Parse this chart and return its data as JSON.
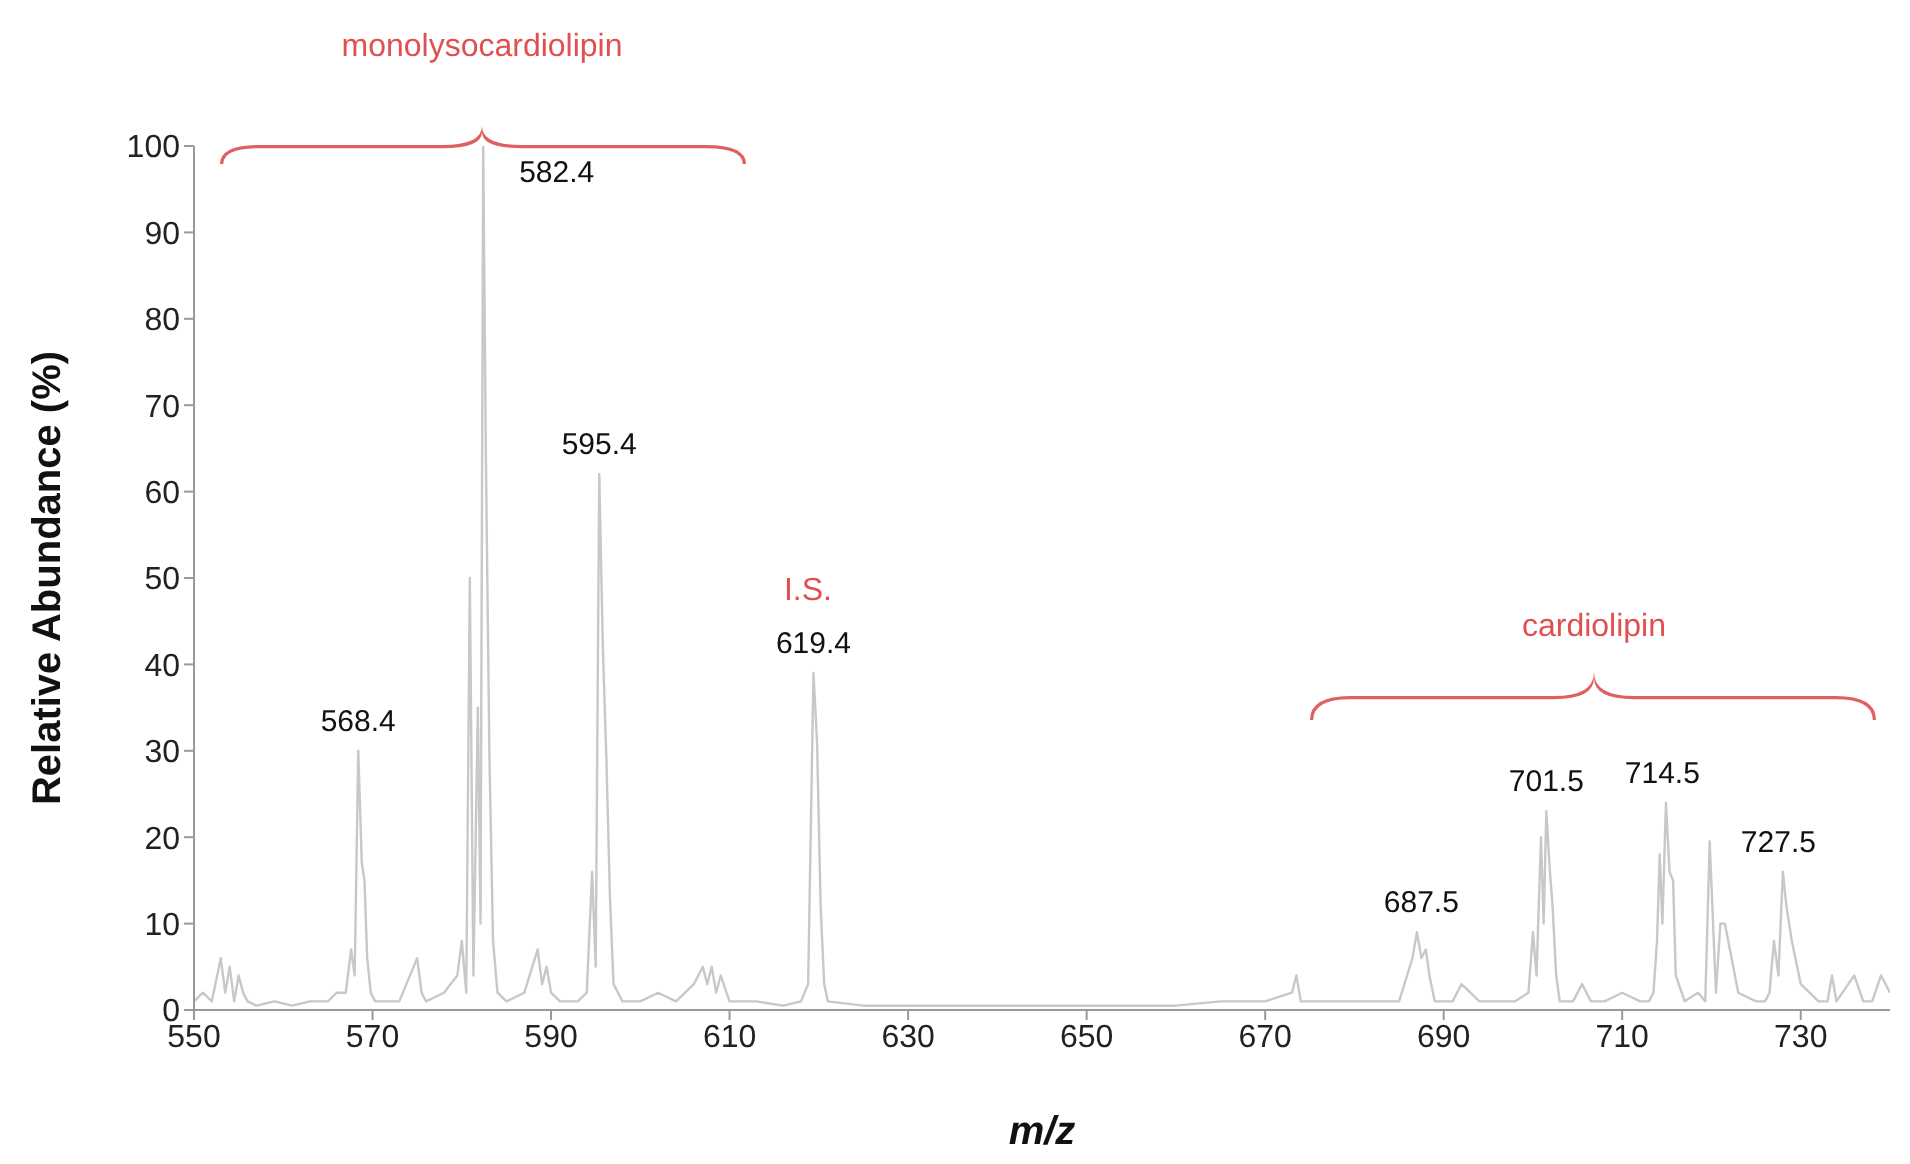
{
  "chart_data": {
    "type": "line",
    "xlabel": "m/z",
    "ylabel": "Relative Abundance (%)",
    "x": [
      550,
      551,
      552,
      553,
      553.5,
      554,
      554.5,
      555,
      555.5,
      556,
      557,
      559,
      561,
      563,
      565,
      566,
      567,
      567.6,
      568,
      568.4,
      568.8,
      569.1,
      569.4,
      569.8,
      570.3,
      571,
      573,
      575,
      575.5,
      576,
      578,
      579.5,
      580,
      580.5,
      580.9,
      581.3,
      581.8,
      582.1,
      582.4,
      582.7,
      583.1,
      583.5,
      584,
      585,
      587,
      588.5,
      589,
      589.5,
      590,
      591,
      593,
      594,
      594.6,
      595,
      595.4,
      595.8,
      596.2,
      596.6,
      597,
      598,
      600,
      602,
      604,
      606,
      607,
      607.5,
      608,
      608.5,
      609,
      610,
      613,
      616,
      618,
      618.8,
      619.4,
      619.8,
      620.2,
      620.6,
      621,
      625,
      630,
      635,
      640,
      645,
      650,
      655,
      660,
      665,
      670,
      673,
      673.5,
      674,
      678,
      682,
      685,
      686.5,
      687,
      687.5,
      688,
      688.4,
      689,
      691,
      692,
      693,
      694,
      696,
      698,
      699.5,
      700,
      700.4,
      700.9,
      701.2,
      701.5,
      701.9,
      702.2,
      702.6,
      703,
      704.5,
      705.5,
      706.5,
      708,
      710,
      712,
      713,
      713.5,
      713.9,
      714.2,
      714.5,
      714.9,
      715.3,
      715.7,
      716,
      717,
      718.5,
      719.3,
      719.8,
      720.5,
      721,
      721.5,
      723,
      725,
      726,
      726.5,
      727,
      727.5,
      728,
      728.4,
      729,
      730,
      732,
      733,
      733.5,
      734,
      736,
      737,
      738,
      739,
      740
    ],
    "values": [
      1,
      2,
      1,
      6,
      2,
      5,
      1,
      4,
      2,
      1,
      0.5,
      1,
      0.5,
      1,
      1,
      2,
      2,
      7,
      4,
      30,
      17,
      15,
      6,
      2,
      1,
      1,
      1,
      6,
      2,
      1,
      2,
      4,
      8,
      2,
      50,
      4,
      35,
      10,
      100,
      64,
      29,
      8,
      2,
      1,
      2,
      7,
      3,
      5,
      2,
      1,
      1,
      2,
      16,
      5,
      62,
      42,
      29,
      13,
      3,
      1,
      1,
      2,
      1,
      3,
      5,
      3,
      5,
      2,
      4,
      1,
      1,
      0.5,
      1,
      3,
      39,
      31,
      12,
      3,
      1,
      0.5,
      0.5,
      0.5,
      0.5,
      0.5,
      0.5,
      0.5,
      0.5,
      1,
      1,
      2,
      4,
      1,
      1,
      1,
      1,
      6,
      9,
      6,
      7,
      4,
      1,
      1,
      3,
      2,
      1,
      1,
      1,
      2,
      9,
      4,
      20,
      10,
      23,
      16,
      12,
      4,
      1,
      1,
      3,
      1,
      1,
      2,
      1,
      1,
      2,
      8,
      18,
      10,
      24,
      16,
      15,
      4,
      1,
      2,
      1,
      19.5,
      2,
      10,
      10,
      2,
      1,
      1,
      2,
      8,
      4,
      16,
      12,
      8,
      3,
      1,
      1,
      4,
      1,
      4,
      1,
      1,
      4,
      2
    ],
    "color": "#c8c8c8",
    "marker": "none",
    "xlim": [
      550,
      740
    ],
    "xticks": [
      550,
      570,
      590,
      610,
      630,
      650,
      670,
      690,
      710,
      730
    ],
    "ylim": [
      0,
      100
    ],
    "yticks": [
      0,
      10,
      20,
      30,
      40,
      50,
      60,
      70,
      80,
      90,
      100
    ],
    "annotations": [
      "monolysocardiolipin",
      "I.S.",
      "cardiolipin",
      {
        "text": "568.4",
        "x": 568.4,
        "y": 30
      },
      {
        "text": "582.4",
        "x": 582.4,
        "y": 100
      },
      {
        "text": "595.4",
        "x": 595.4,
        "y": 62
      },
      {
        "text": "619.4",
        "x": 619.4,
        "y": 39
      },
      {
        "text": "687.5",
        "x": 687.5,
        "y": 9
      },
      {
        "text": "701.5",
        "x": 701.5,
        "y": 23
      },
      {
        "text": "714.5",
        "x": 714.5,
        "y": 24
      },
      {
        "text": "727.5",
        "x": 727.5,
        "y": 16
      }
    ]
  }
}
